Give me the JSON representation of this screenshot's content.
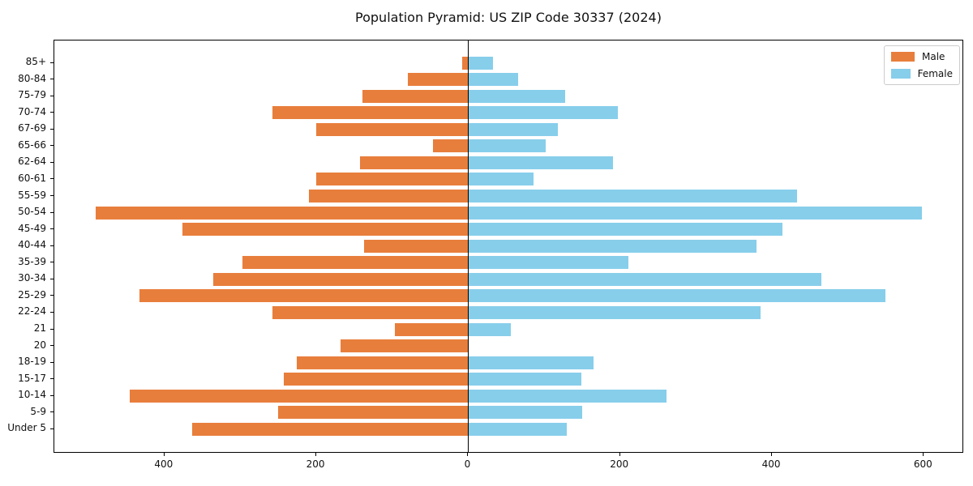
{
  "title": "Population Pyramid: US ZIP Code 30337 (2024)",
  "legend": {
    "male_label": "Male",
    "female_label": "Female"
  },
  "colors": {
    "male": "#e87e3c",
    "female": "#87ceeb",
    "axis": "#000000",
    "legend_border": "#cccccc",
    "background": "#ffffff"
  },
  "chart_data": {
    "type": "bar",
    "subtype": "population-pyramid",
    "title": "Population Pyramid: US ZIP Code 30337 (2024)",
    "grid": false,
    "legend_position": "upper right",
    "categories_top_to_bottom": [
      "85+",
      "80-84",
      "75-79",
      "70-74",
      "67-69",
      "65-66",
      "62-64",
      "60-61",
      "55-59",
      "50-54",
      "45-49",
      "40-44",
      "35-39",
      "30-34",
      "25-29",
      "22-24",
      "21",
      "20",
      "18-19",
      "15-17",
      "10-14",
      "5-9",
      "Under 5"
    ],
    "series": [
      {
        "name": "Male",
        "side": "left",
        "color": "#e87e3c",
        "values": [
          8,
          80,
          139,
          258,
          200,
          46,
          142,
          200,
          210,
          491,
          376,
          137,
          297,
          336,
          433,
          258,
          97,
          168,
          226,
          243,
          446,
          250,
          364
        ]
      },
      {
        "name": "Female",
        "side": "right",
        "color": "#87ceeb",
        "values": [
          32,
          65,
          127,
          197,
          118,
          102,
          190,
          86,
          433,
          597,
          413,
          379,
          210,
          465,
          549,
          384,
          56,
          0,
          164,
          149,
          261,
          150,
          129
        ]
      }
    ],
    "x_ticks": [
      {
        "value": -400,
        "label": "400"
      },
      {
        "value": -200,
        "label": "200"
      },
      {
        "value": 0,
        "label": "0"
      },
      {
        "value": 200,
        "label": "200"
      },
      {
        "value": 400,
        "label": "400"
      },
      {
        "value": 600,
        "label": "600"
      }
    ],
    "xlim": [
      -545,
      653
    ],
    "xlabel": "",
    "ylabel": ""
  }
}
